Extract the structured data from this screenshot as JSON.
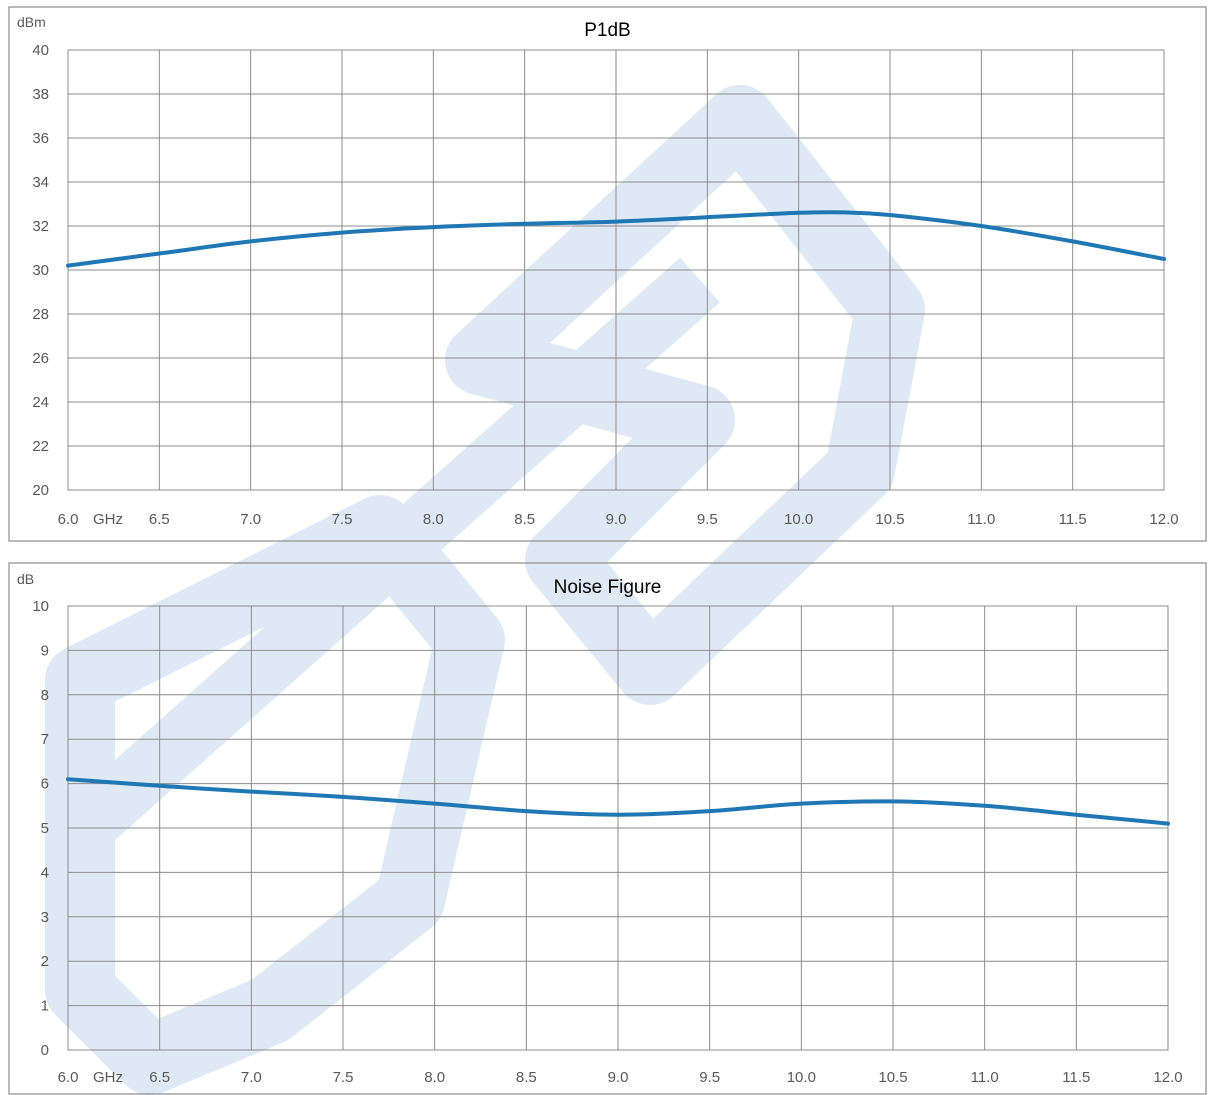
{
  "chart_data": [
    {
      "type": "line",
      "title": "P1dB",
      "y_unit": "dBm",
      "x_unit": "GHz",
      "x_ticks": [
        "6.0",
        "6.5",
        "7.0",
        "7.5",
        "8.0",
        "8.5",
        "9.0",
        "9.5",
        "10.0",
        "10.5",
        "11.0",
        "11.5",
        "12.0"
      ],
      "y_ticks": [
        "20",
        "22",
        "24",
        "26",
        "28",
        "30",
        "32",
        "34",
        "36",
        "38",
        "40"
      ],
      "xlim": [
        6.0,
        12.0
      ],
      "ylim": [
        20,
        40
      ],
      "grid": true,
      "color": "#1f77b4",
      "series": [
        {
          "x": [
            6.0,
            6.5,
            7.0,
            7.5,
            8.0,
            8.5,
            9.0,
            9.5,
            10.0,
            10.25,
            10.5,
            11.0,
            11.5,
            12.0
          ],
          "y": [
            30.2,
            30.75,
            31.3,
            31.7,
            31.95,
            32.1,
            32.2,
            32.4,
            32.6,
            32.62,
            32.5,
            32.0,
            31.3,
            30.5
          ]
        }
      ]
    },
    {
      "type": "line",
      "title": "Noise Figure",
      "y_unit": "dB",
      "x_unit": "GHz",
      "x_ticks": [
        "6.0",
        "6.5",
        "7.0",
        "7.5",
        "8.0",
        "8.5",
        "9.0",
        "9.5",
        "10.0",
        "10.5",
        "11.0",
        "11.5",
        "12.0"
      ],
      "y_ticks": [
        "0",
        "1",
        "2",
        "3",
        "4",
        "5",
        "6",
        "7",
        "8",
        "9",
        "10"
      ],
      "xlim": [
        6.0,
        12.0
      ],
      "ylim": [
        0,
        10
      ],
      "grid": true,
      "color": "#1f77b4",
      "series": [
        {
          "x": [
            6.0,
            6.5,
            7.0,
            7.5,
            8.0,
            8.5,
            9.0,
            9.5,
            10.0,
            10.5,
            11.0,
            11.5,
            12.0
          ],
          "y": [
            6.1,
            5.95,
            5.82,
            5.7,
            5.55,
            5.38,
            5.3,
            5.38,
            5.55,
            5.6,
            5.5,
            5.3,
            5.1
          ]
        }
      ]
    }
  ],
  "watermark": {
    "color": "#dfe9f5"
  }
}
